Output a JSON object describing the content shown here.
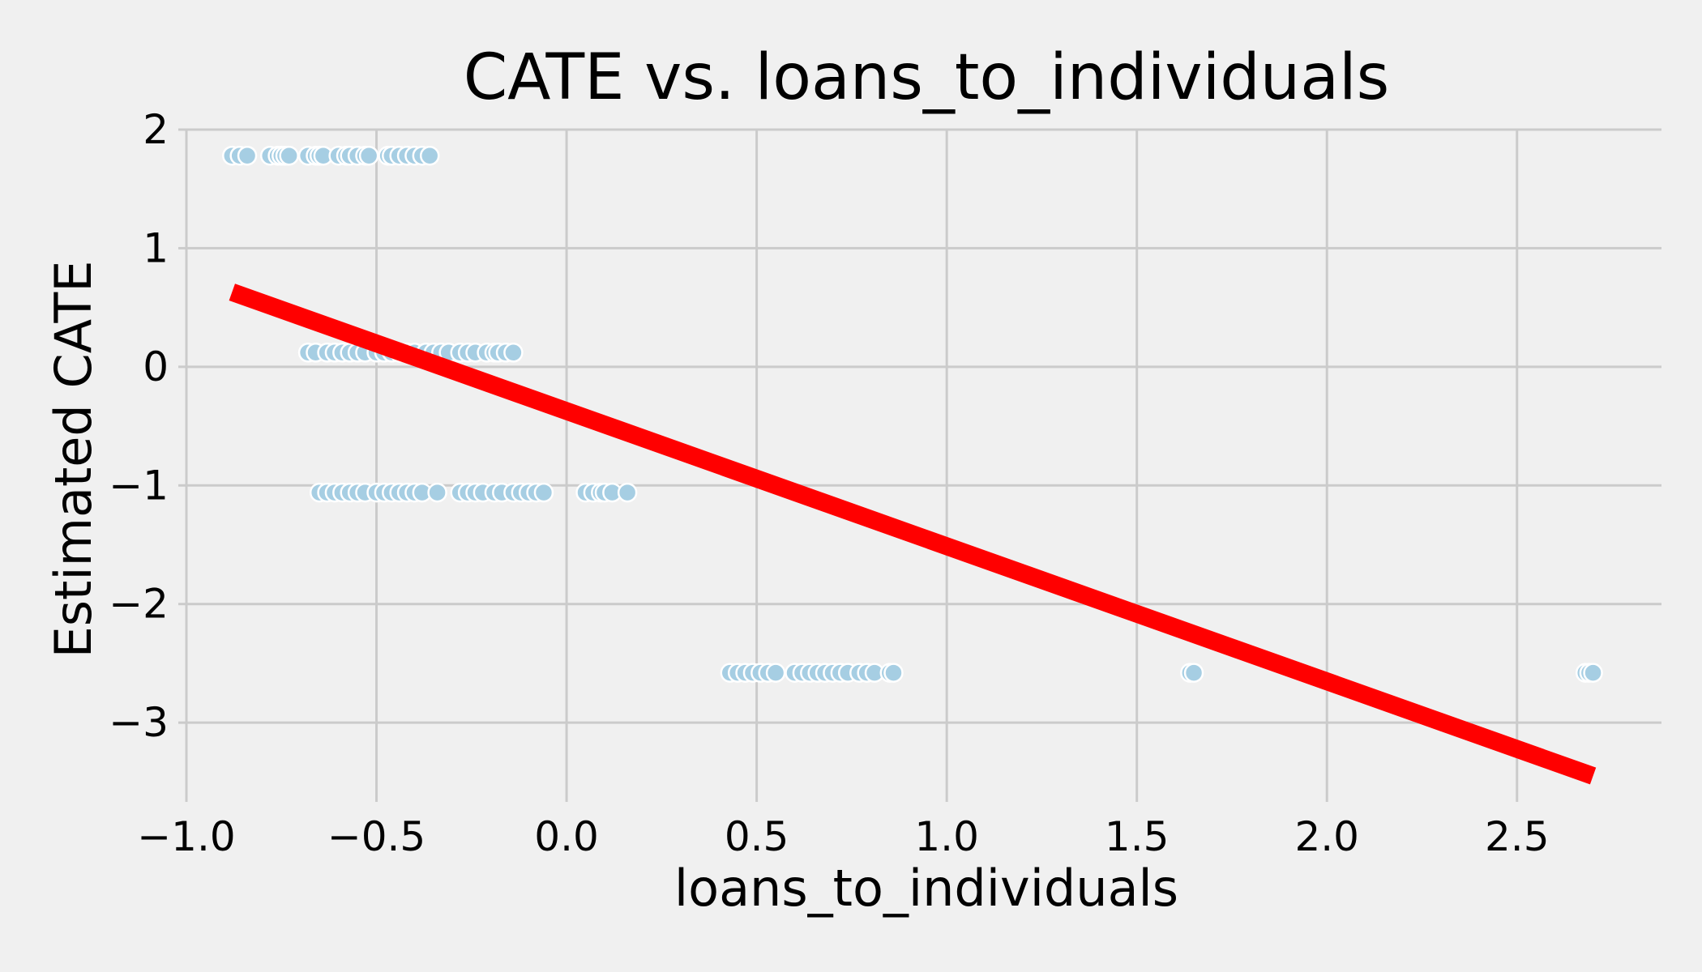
{
  "colors": {
    "background": "#f0f0f0",
    "grid": "#cbcbcb",
    "point_fill": "#a6cee3",
    "point_edge": "#ffffff",
    "trend_line": "#ff0000"
  },
  "chart_data": {
    "type": "scatter",
    "title": "CATE vs. loans_to_individuals",
    "xlabel": "loans_to_individuals",
    "ylabel": "Estimated CATE",
    "xlim": [
      -1.0,
      2.88
    ],
    "ylim": [
      -3.6,
      2.0
    ],
    "x_ticks": [
      -1.0,
      -0.5,
      0.0,
      0.5,
      1.0,
      1.5,
      2.0,
      2.5
    ],
    "x_tick_labels": [
      "−1.0",
      "−0.5",
      "0.0",
      "0.5",
      "1.0",
      "1.5",
      "2.0",
      "2.5"
    ],
    "y_ticks": [
      2,
      1,
      0,
      -1,
      -2,
      -3
    ],
    "y_tick_labels": [
      "2",
      "1",
      "0",
      "−1",
      "−2",
      "−3"
    ],
    "grid": true,
    "series": [
      {
        "kind": "scatter",
        "groups": [
          {
            "y": 1.78,
            "x": [
              -0.88,
              -0.86,
              -0.84,
              -0.78,
              -0.76,
              -0.75,
              -0.74,
              -0.73,
              -0.68,
              -0.66,
              -0.65,
              -0.64,
              -0.6,
              -0.58,
              -0.57,
              -0.55,
              -0.53,
              -0.52,
              -0.47,
              -0.46,
              -0.44,
              -0.42,
              -0.4,
              -0.38,
              -0.36
            ]
          },
          {
            "y": 0.12,
            "x": [
              -0.68,
              -0.66,
              -0.63,
              -0.61,
              -0.59,
              -0.57,
              -0.55,
              -0.53,
              -0.5,
              -0.48,
              -0.46,
              -0.44,
              -0.42,
              -0.4,
              -0.37,
              -0.35,
              -0.33,
              -0.31,
              -0.28,
              -0.26,
              -0.24,
              -0.21,
              -0.19,
              -0.18,
              -0.16,
              -0.14
            ]
          },
          {
            "y": -1.06,
            "x": [
              -0.65,
              -0.63,
              -0.61,
              -0.59,
              -0.57,
              -0.55,
              -0.53,
              -0.5,
              -0.48,
              -0.46,
              -0.44,
              -0.42,
              -0.4,
              -0.38,
              -0.34,
              -0.28,
              -0.26,
              -0.24,
              -0.22,
              -0.19,
              -0.17,
              -0.14,
              -0.12,
              -0.1,
              -0.08,
              -0.06,
              0.05,
              0.07,
              0.09,
              0.1,
              0.12,
              0.16
            ]
          },
          {
            "y": -2.58,
            "x": [
              0.43,
              0.45,
              0.47,
              0.49,
              0.51,
              0.53,
              0.55,
              0.6,
              0.62,
              0.64,
              0.66,
              0.68,
              0.7,
              0.72,
              0.74,
              0.77,
              0.79,
              0.81,
              0.85,
              0.86,
              1.64,
              1.65,
              2.68,
              2.69,
              2.7
            ]
          }
        ]
      },
      {
        "kind": "line",
        "x": [
          -0.88,
          2.7
        ],
        "y": [
          0.63,
          -3.45
        ]
      }
    ]
  }
}
